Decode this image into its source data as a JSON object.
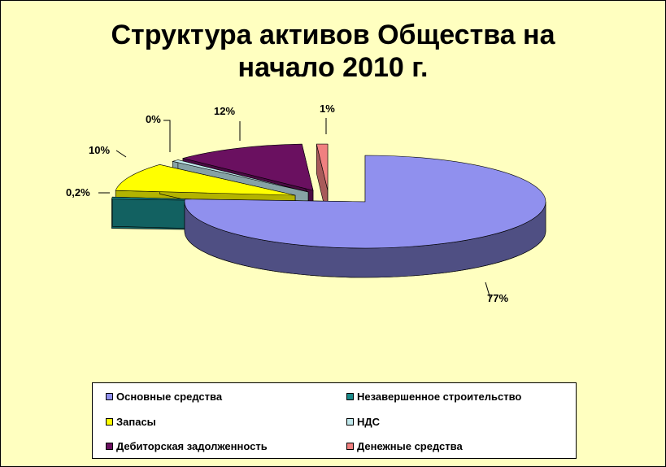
{
  "chart_data": {
    "type": "pie",
    "title": "Структура активов Общества на\nначало 2010 г.",
    "slices": [
      {
        "name": "Основные средства",
        "label": "77%",
        "value": 77,
        "color": "#9090ee"
      },
      {
        "name": "Незавершенное строительство",
        "label": "0,2%",
        "value": 0.2,
        "color": "#1a8a8a"
      },
      {
        "name": "Запасы",
        "label": "10%",
        "value": 10,
        "color": "#ffff00"
      },
      {
        "name": "НДС",
        "label": "0%",
        "value": 0,
        "color": "#c0e8ec"
      },
      {
        "name": "Дебиторская задолженность",
        "label": "12%",
        "value": 12,
        "color": "#6a1060"
      },
      {
        "name": "Денежные средства",
        "label": "1%",
        "value": 1,
        "color": "#f08080"
      }
    ],
    "legend": "bottom"
  }
}
